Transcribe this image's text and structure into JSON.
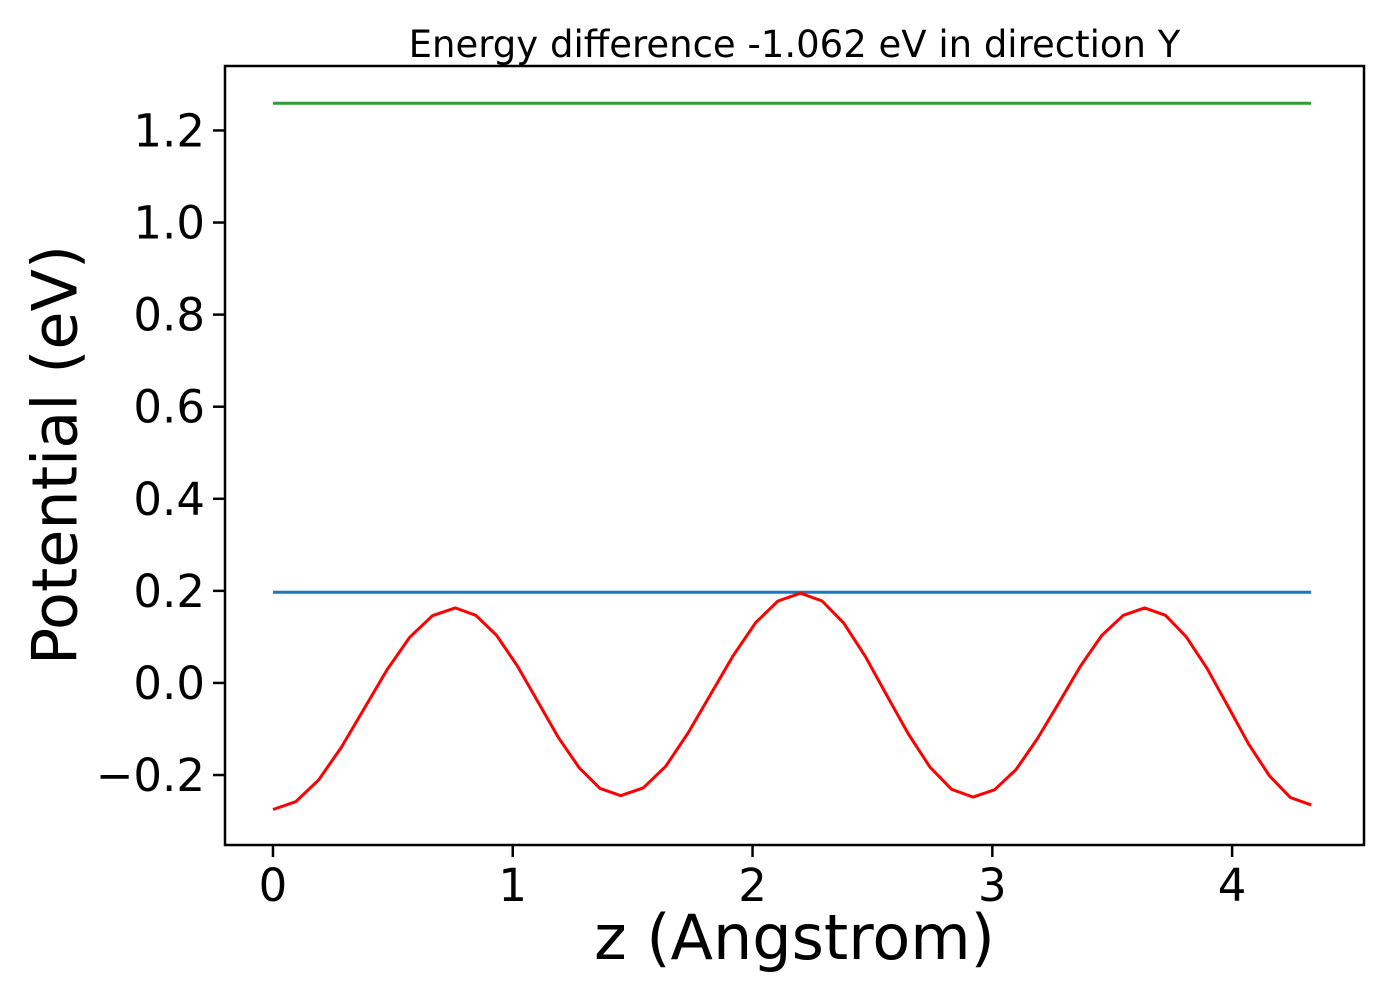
{
  "figure": {
    "title": "Energy difference -1.062 eV in direction Y",
    "xlabel": "z (Angstrom)",
    "ylabel": "Potential (eV)",
    "background_color": "#ffffff",
    "axis_color": "#000000"
  },
  "chart_data": {
    "type": "line",
    "title": "Energy difference -1.062 eV in direction Y",
    "xlabel": "z (Angstrom)",
    "ylabel": "Potential (eV)",
    "xlim": [
      -0.2,
      4.55
    ],
    "ylim": [
      -0.352,
      1.34
    ],
    "grid": false,
    "legend": "none",
    "x_ticks": {
      "values": [
        0,
        1,
        2,
        3,
        4
      ],
      "labels": [
        "0",
        "1",
        "2",
        "3",
        "4"
      ]
    },
    "y_ticks": {
      "values": [
        -0.2,
        0.0,
        0.2,
        0.4,
        0.6,
        0.8,
        1.0,
        1.2
      ],
      "labels": [
        "−0.2",
        "0.0",
        "0.2",
        "0.4",
        "0.6",
        "0.8",
        "1.0",
        "1.2"
      ]
    },
    "series": [
      {
        "name": "green-hline-upper-level",
        "style": "hline",
        "color": "#2ca02c",
        "y": 1.259,
        "x_start": 0.0,
        "x_end": 4.33
      },
      {
        "name": "blue-hline-lower-level",
        "style": "hline",
        "color": "#1f77b4",
        "y": 0.197,
        "x_start": 0.0,
        "x_end": 4.33
      },
      {
        "name": "red-potential-curve",
        "style": "curve",
        "color": "#ff0000",
        "x": [
          0.0,
          0.095,
          0.19,
          0.285,
          0.38,
          0.475,
          0.57,
          0.665,
          0.76,
          0.846,
          0.933,
          1.019,
          1.105,
          1.191,
          1.278,
          1.364,
          1.45,
          1.544,
          1.638,
          1.731,
          1.825,
          1.919,
          2.013,
          2.106,
          2.2,
          2.29,
          2.38,
          2.47,
          2.56,
          2.65,
          2.74,
          2.83,
          2.92,
          3.009,
          3.099,
          3.188,
          3.278,
          3.367,
          3.456,
          3.546,
          3.635,
          3.722,
          3.809,
          3.896,
          3.983,
          4.069,
          4.156,
          4.243,
          4.33
        ],
        "y": [
          -0.275,
          -0.258,
          -0.211,
          -0.14,
          -0.056,
          0.028,
          0.099,
          0.146,
          0.163,
          0.147,
          0.103,
          0.037,
          -0.041,
          -0.119,
          -0.185,
          -0.229,
          -0.245,
          -0.228,
          -0.181,
          -0.109,
          -0.025,
          0.059,
          0.131,
          0.178,
          0.195,
          0.178,
          0.13,
          0.058,
          -0.027,
          -0.111,
          -0.183,
          -0.231,
          -0.248,
          -0.232,
          -0.188,
          -0.121,
          -0.043,
          0.036,
          0.103,
          0.147,
          0.163,
          0.147,
          0.1,
          0.031,
          -0.051,
          -0.133,
          -0.202,
          -0.249,
          -0.265
        ]
      }
    ]
  }
}
